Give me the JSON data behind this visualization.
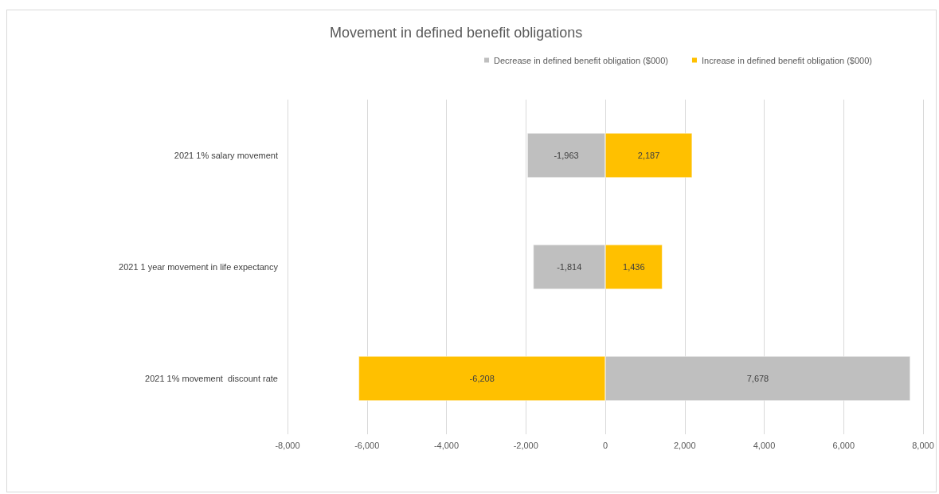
{
  "chart_data": {
    "type": "bar",
    "title": "Movement in defined benefit obligations",
    "orientation": "horizontal",
    "stacked": true,
    "categories": [
      "2021 1% salary movement",
      "2021 1 year movement in life expectancy",
      "2021 1% movement  discount rate"
    ],
    "series": [
      {
        "name": "Decrease in defined benefit obligation ($000)",
        "color": "#bfbfbf",
        "values": [
          -1963,
          -1814,
          7678
        ],
        "value_labels": [
          "-1,963",
          "-1,814",
          "7,678"
        ]
      },
      {
        "name": "Increase in defined benefit obligation ($000)",
        "color": "#ffc000",
        "values": [
          2187,
          1436,
          -6208
        ],
        "value_labels": [
          "2,187",
          "1,436",
          "-6,208"
        ]
      }
    ],
    "xlim": [
      -8000,
      8000
    ],
    "xticks": [
      {
        "value": -8000,
        "label": "-8,000"
      },
      {
        "value": -6000,
        "label": "-6,000"
      },
      {
        "value": -4000,
        "label": "-4,000"
      },
      {
        "value": -2000,
        "label": "-2,000"
      },
      {
        "value": 0,
        "label": "0"
      },
      {
        "value": 2000,
        "label": "2,000"
      },
      {
        "value": 4000,
        "label": "4,000"
      },
      {
        "value": 6000,
        "label": "6,000"
      },
      {
        "value": 8000,
        "label": "8,000"
      }
    ],
    "grid": "x",
    "legend": "top right"
  }
}
